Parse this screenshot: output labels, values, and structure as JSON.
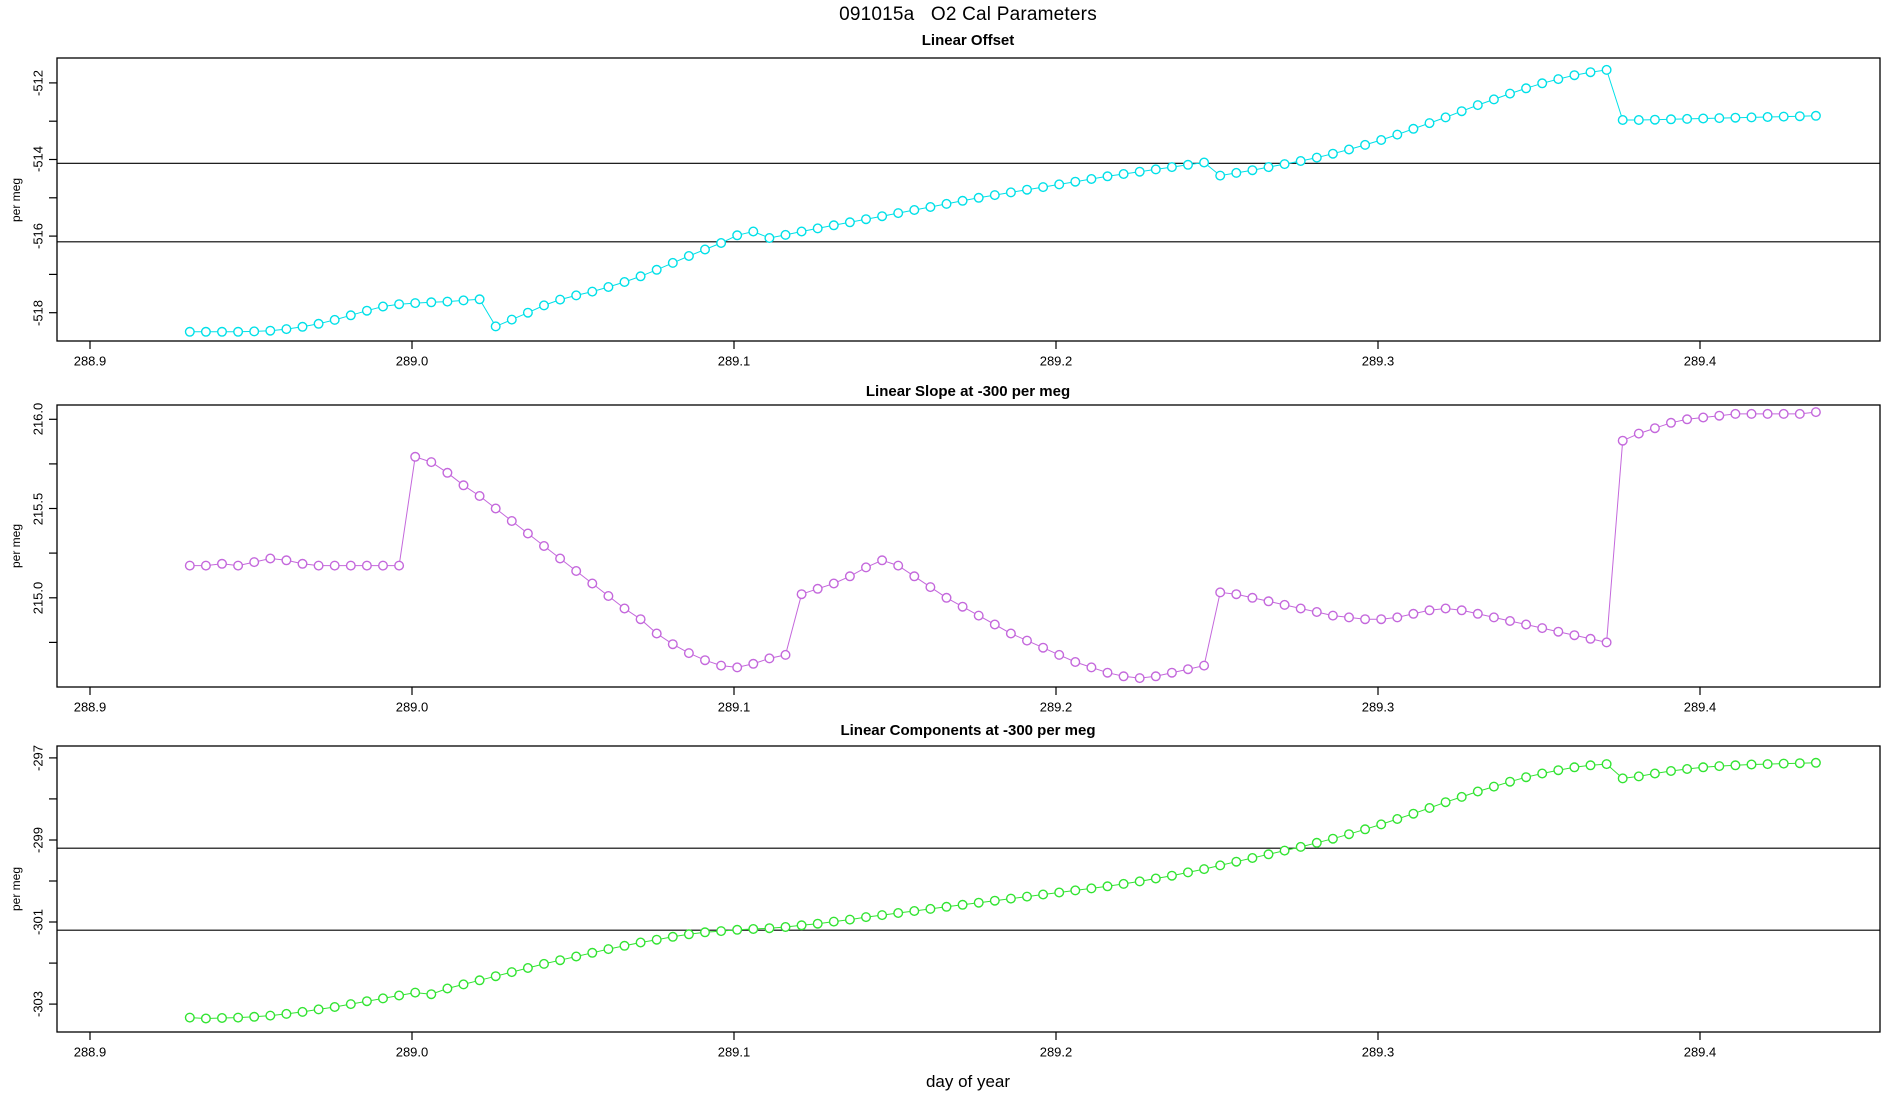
{
  "title": "091015a   O2 Cal Parameters",
  "x_axis": {
    "label": "day of year",
    "ticks": [
      288.9,
      289.0,
      289.1,
      289.2,
      289.3,
      289.4
    ],
    "tick_labels": [
      "288.9",
      "289.0",
      "289.1",
      "289.2",
      "289.3",
      "289.4"
    ],
    "xlim": [
      288.89,
      289.456
    ]
  },
  "chart_data": [
    {
      "type": "scatter",
      "title": "Linear Offset",
      "ylabel": "per meg",
      "color": "#00E0E8",
      "marker": "open-circle",
      "line": true,
      "x_start": 288.931,
      "x_step": 0.005,
      "ylim": [
        -518.74,
        -511.35
      ],
      "y_ticks": [
        -518,
        -517,
        -516,
        -515,
        -514,
        -513,
        -512
      ],
      "y_tick_labels": [
        {
          "v": -512,
          "t": "-512"
        },
        {
          "v": -514,
          "t": "-514"
        },
        {
          "v": -516,
          "t": "-516"
        },
        {
          "v": -518,
          "t": "-518"
        }
      ],
      "hlines": [
        -514.1,
        -516.15
      ],
      "values": [
        -518.5,
        -518.5,
        -518.5,
        -518.5,
        -518.49,
        -518.47,
        -518.43,
        -518.37,
        -518.29,
        -518.19,
        -518.07,
        -517.95,
        -517.84,
        -517.78,
        -517.75,
        -517.73,
        -517.71,
        -517.68,
        -517.65,
        -518.36,
        -518.18,
        -518.0,
        -517.81,
        -517.66,
        -517.55,
        -517.45,
        -517.33,
        -517.2,
        -517.05,
        -516.88,
        -516.7,
        -516.52,
        -516.35,
        -516.18,
        -515.98,
        -515.88,
        -516.05,
        -515.97,
        -515.88,
        -515.8,
        -515.72,
        -515.64,
        -515.56,
        -515.48,
        -515.4,
        -515.32,
        -515.24,
        -515.16,
        -515.08,
        -515.0,
        -514.93,
        -514.86,
        -514.79,
        -514.72,
        -514.65,
        -514.58,
        -514.51,
        -514.44,
        -514.38,
        -514.32,
        -514.26,
        -514.2,
        -514.14,
        -514.08,
        -514.42,
        -514.35,
        -514.28,
        -514.2,
        -514.12,
        -514.04,
        -513.95,
        -513.85,
        -513.74,
        -513.62,
        -513.49,
        -513.35,
        -513.2,
        -513.05,
        -512.9,
        -512.74,
        -512.58,
        -512.43,
        -512.28,
        -512.14,
        -512.01,
        -511.9,
        -511.8,
        -511.72,
        -511.66,
        -512.97,
        -512.97,
        -512.96,
        -512.95,
        -512.94,
        -512.93,
        -512.92,
        -512.91,
        -512.9,
        -512.89,
        -512.88,
        -512.87,
        -512.86
      ]
    },
    {
      "type": "scatter",
      "title": "Linear Slope at -300 per meg",
      "ylabel": "per meg",
      "color": "#C468DC",
      "marker": "open-circle",
      "line": true,
      "x_start": 288.931,
      "x_step": 0.005,
      "ylim": [
        214.5,
        216.08
      ],
      "y_ticks": [
        214.75,
        215.0,
        215.25,
        215.5,
        215.75,
        216.0
      ],
      "y_tick_labels": [
        {
          "v": 215.0,
          "t": "215.0"
        },
        {
          "v": 215.5,
          "t": "215.5"
        },
        {
          "v": 216.0,
          "t": "216.0"
        }
      ],
      "hlines": [],
      "values": [
        215.18,
        215.18,
        215.19,
        215.18,
        215.2,
        215.22,
        215.21,
        215.19,
        215.18,
        215.18,
        215.18,
        215.18,
        215.18,
        215.18,
        215.79,
        215.76,
        215.7,
        215.63,
        215.57,
        215.5,
        215.43,
        215.36,
        215.29,
        215.22,
        215.15,
        215.08,
        215.01,
        214.94,
        214.88,
        214.8,
        214.74,
        214.69,
        214.65,
        214.62,
        214.61,
        214.63,
        214.66,
        214.68,
        215.02,
        215.05,
        215.08,
        215.12,
        215.17,
        215.21,
        215.18,
        215.12,
        215.06,
        215.0,
        214.95,
        214.9,
        214.85,
        214.8,
        214.76,
        214.72,
        214.68,
        214.64,
        214.61,
        214.58,
        214.56,
        214.55,
        214.56,
        214.58,
        214.6,
        214.62,
        215.03,
        215.02,
        215.0,
        214.98,
        214.96,
        214.94,
        214.92,
        214.9,
        214.89,
        214.88,
        214.88,
        214.89,
        214.91,
        214.93,
        214.94,
        214.93,
        214.91,
        214.89,
        214.87,
        214.85,
        214.83,
        214.81,
        214.79,
        214.77,
        214.75,
        215.88,
        215.92,
        215.95,
        215.98,
        216.0,
        216.01,
        216.02,
        216.03,
        216.03,
        216.03,
        216.03,
        216.03,
        216.04
      ]
    },
    {
      "type": "scatter",
      "title": "Linear Components at -300 per meg",
      "ylabel": "per meg",
      "color": "#32E432",
      "marker": "open-circle",
      "line": true,
      "x_start": 288.931,
      "x_step": 0.005,
      "ylim": [
        -303.68,
        -296.71
      ],
      "y_ticks": [
        -303,
        -302,
        -301,
        -300,
        -299,
        -298,
        -297
      ],
      "y_tick_labels": [
        {
          "v": -297,
          "t": "-297"
        },
        {
          "v": -299,
          "t": "-299"
        },
        {
          "v": -301,
          "t": "-301"
        },
        {
          "v": -303,
          "t": "-303"
        }
      ],
      "hlines": [
        -299.2,
        -301.2
      ],
      "values": [
        -303.33,
        -303.35,
        -303.34,
        -303.33,
        -303.31,
        -303.28,
        -303.24,
        -303.19,
        -303.13,
        -303.07,
        -303.0,
        -302.93,
        -302.86,
        -302.79,
        -302.72,
        -302.76,
        -302.62,
        -302.52,
        -302.42,
        -302.32,
        -302.22,
        -302.12,
        -302.02,
        -301.93,
        -301.84,
        -301.75,
        -301.66,
        -301.58,
        -301.5,
        -301.43,
        -301.36,
        -301.3,
        -301.25,
        -301.22,
        -301.19,
        -301.17,
        -301.15,
        -301.12,
        -301.08,
        -301.04,
        -300.99,
        -300.94,
        -300.88,
        -300.83,
        -300.78,
        -300.73,
        -300.68,
        -300.63,
        -300.58,
        -300.53,
        -300.48,
        -300.43,
        -300.38,
        -300.33,
        -300.28,
        -300.23,
        -300.18,
        -300.13,
        -300.07,
        -300.01,
        -299.94,
        -299.87,
        -299.79,
        -299.71,
        -299.62,
        -299.53,
        -299.44,
        -299.35,
        -299.26,
        -299.17,
        -299.07,
        -298.97,
        -298.86,
        -298.74,
        -298.62,
        -298.49,
        -298.36,
        -298.22,
        -298.08,
        -297.95,
        -297.82,
        -297.7,
        -297.58,
        -297.47,
        -297.38,
        -297.3,
        -297.23,
        -297.18,
        -297.15,
        -297.5,
        -297.45,
        -297.38,
        -297.32,
        -297.27,
        -297.23,
        -297.2,
        -297.18,
        -297.16,
        -297.15,
        -297.14,
        -297.13,
        -297.12
      ]
    }
  ]
}
